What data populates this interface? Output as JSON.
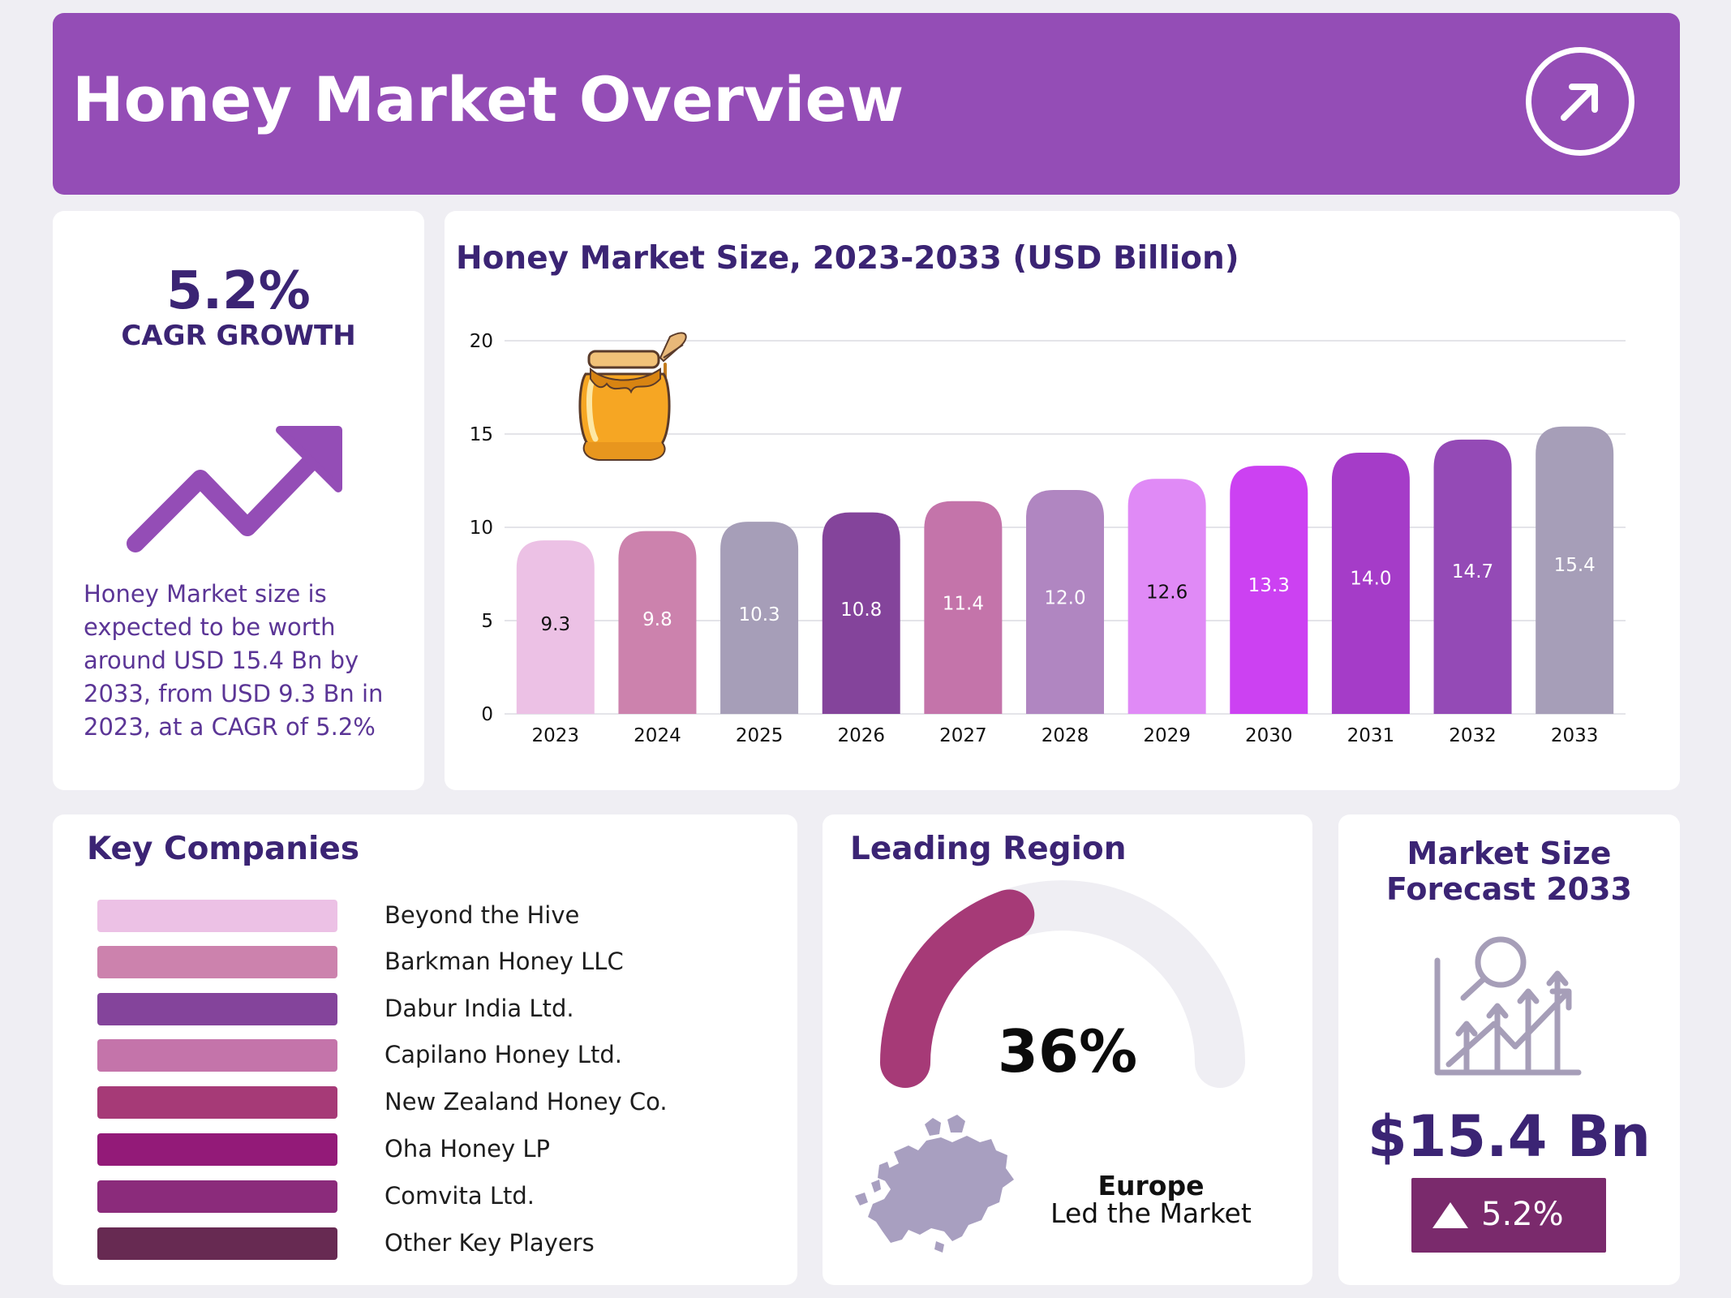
{
  "header": {
    "title": "Honey Market Overview",
    "icon": "arrow-up-right-icon"
  },
  "cagr": {
    "value": "5.2%",
    "label": "CAGR GROWTH",
    "icon": "trend-up-arrow-icon",
    "description": "Honey Market size is expected to be worth around USD 15.4 Bn by 2033, from USD 9.3 Bn in 2023, at a CAGR of 5.2%"
  },
  "chart_data": {
    "type": "bar",
    "title": "Honey Market Size, 2023-2033 (USD Billion)",
    "xlabel": "",
    "ylabel": "",
    "ylim": [
      0,
      20
    ],
    "yticks": [
      0,
      5,
      10,
      15,
      20
    ],
    "grid": true,
    "categories": [
      "2023",
      "2024",
      "2025",
      "2026",
      "2027",
      "2028",
      "2029",
      "2030",
      "2031",
      "2032",
      "2033"
    ],
    "values": [
      9.3,
      9.8,
      10.3,
      10.8,
      11.4,
      12.0,
      12.6,
      13.3,
      14.0,
      14.7,
      15.4
    ],
    "labels": [
      "9.3",
      "9.8",
      "10.3",
      "10.8",
      "11.4",
      "12.0",
      "12.6",
      "13.3",
      "14.0",
      "14.7",
      "15.4"
    ],
    "colors": [
      "#ecc1e5",
      "#cc82ad",
      "#a69eb8",
      "#84449b",
      "#c474aa",
      "#b086c1",
      "#e08af6",
      "#cc41f2",
      "#a53cc8",
      "#944ab6",
      "#a69eb8"
    ],
    "label_colors": [
      "#111111",
      "#ffffff",
      "#ffffff",
      "#ffffff",
      "#ffffff",
      "#ffffff",
      "#111111",
      "#ffffff",
      "#ffffff",
      "#ffffff",
      "#ffffff"
    ],
    "decoration": "honey-jar-icon"
  },
  "companies": {
    "title": "Key Companies",
    "items": [
      {
        "name": "Beyond the Hive",
        "color": "#ecc1e5"
      },
      {
        "name": "Barkman Honey LLC",
        "color": "#cc82ad"
      },
      {
        "name": "Dabur India Ltd.",
        "color": "#84449b"
      },
      {
        "name": "Capilano Honey Ltd.",
        "color": "#c474aa"
      },
      {
        "name": "New Zealand Honey Co.",
        "color": "#a63a77"
      },
      {
        "name": "Oha Honey LP",
        "color": "#931a78"
      },
      {
        "name": "Comvita Ltd.",
        "color": "#8b2b7b"
      },
      {
        "name": "Other Key Players",
        "color": "#672a52"
      }
    ]
  },
  "region": {
    "title": "Leading Region",
    "share_percent": 36,
    "share_label": "36%",
    "name": "Europe",
    "caption": "Led the Market",
    "gauge_color": "#a63a77",
    "track_color": "#efeef3",
    "map_icon": "europe-map-icon"
  },
  "forecast": {
    "title_line1": "Market Size",
    "title_line2": "Forecast 2033",
    "value": "$15.4 Bn",
    "growth": "5.2%",
    "icon": "growth-chart-magnifier-icon",
    "badge_icon": "triangle-up-icon"
  }
}
